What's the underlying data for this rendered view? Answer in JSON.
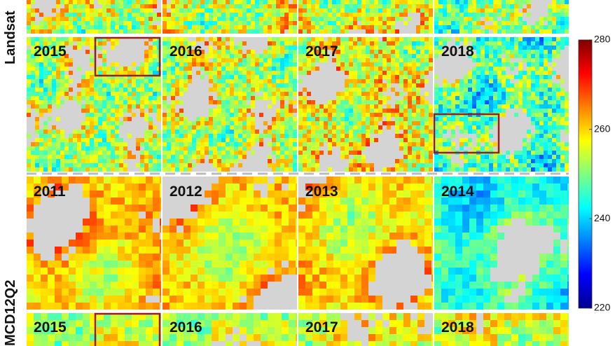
{
  "row_labels": [
    "Landsat",
    "MCD12Q2"
  ],
  "landsat_panels": [
    "2015",
    "2016",
    "2017",
    "2018"
  ],
  "mcd_panels": [
    "2011",
    "2012",
    "2013",
    "2014"
  ],
  "mcd_panels_bottom": [
    "2015",
    "2016",
    "2017",
    "2018"
  ],
  "colorbar": {
    "lim": [
      220,
      280
    ],
    "ticks": [
      220,
      240,
      260,
      280
    ]
  }
}
